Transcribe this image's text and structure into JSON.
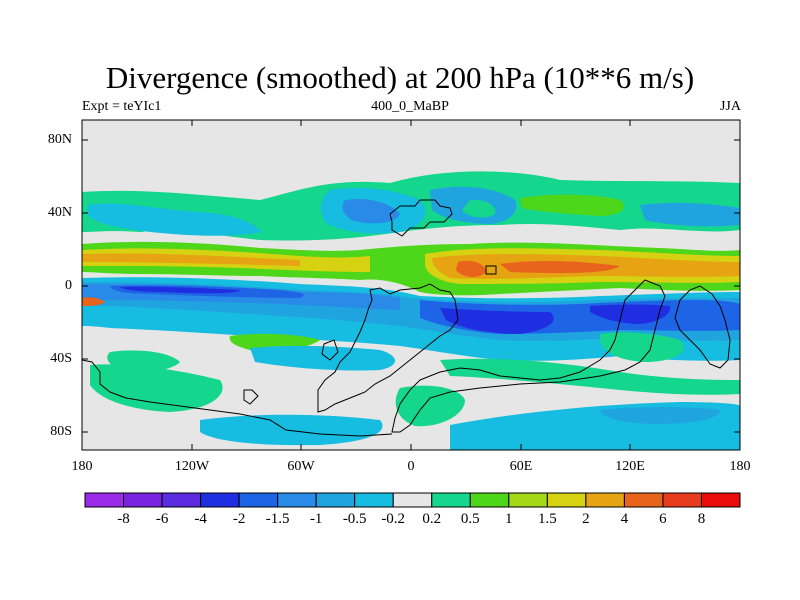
{
  "title": "Divergence (smoothed) at 200 hPa (10**6 m/s)",
  "experiment": "Expt = teYIc1",
  "period": "400_0_MaBP",
  "season": "JJA",
  "y_axis_labels": [
    "80N",
    "40N",
    "0",
    "40S",
    "80S"
  ],
  "x_axis_labels": [
    "180",
    "120W",
    "60W",
    "0",
    "60E",
    "120E",
    "180"
  ],
  "colorbar": {
    "labels": [
      "-8",
      "-6",
      "-4",
      "-2",
      "-1.5",
      "-1",
      "-0.5",
      "-0.2",
      "0.2",
      "0.5",
      "1",
      "1.5",
      "2",
      "4",
      "6",
      "8"
    ],
    "colors": [
      "#9b2be8",
      "#7a24e0",
      "#5c2ce0",
      "#1f2ee0",
      "#1e64e6",
      "#2a8ae8",
      "#1fa4e0",
      "#16bde0",
      "#e6e6e6",
      "#14d68c",
      "#4ed61a",
      "#a6d81a",
      "#d6d212",
      "#e6a412",
      "#e8641c",
      "#e83a1c",
      "#e80c0c"
    ]
  },
  "colors": {
    "background": "#e6e6e6",
    "strong_divergence": "#e8641c",
    "strong_convergence": "#1f2ee0"
  }
}
